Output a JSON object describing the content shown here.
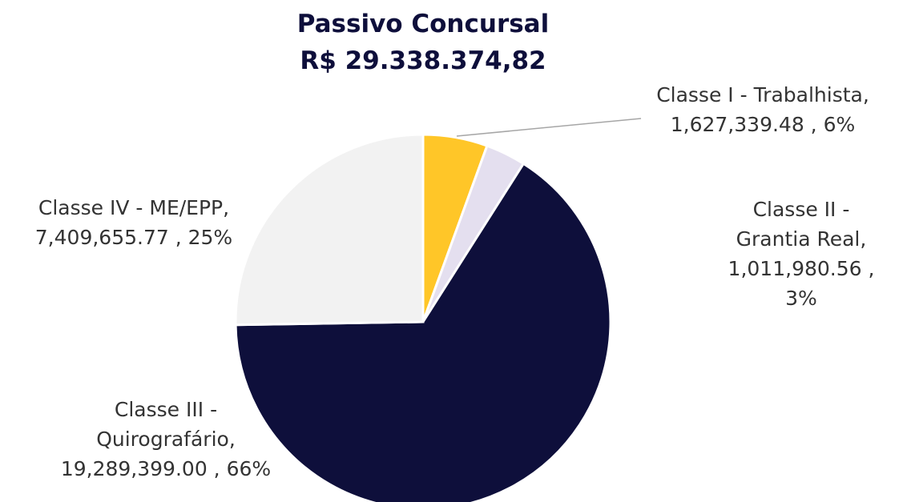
{
  "chart_data": {
    "type": "pie",
    "title": "Passivo Concursal",
    "subtitle": "R$ 29.338.374,82",
    "categories": [
      "Classe I - Trabalhista",
      "Classe II - Grantia Real",
      "Classe III - Quirografário",
      "Classe IV - ME/EPP"
    ],
    "values": [
      1627339.48,
      1011980.56,
      19289399.0,
      7409655.77
    ],
    "value_labels": [
      "1,627,339.48",
      "1,011,980.56",
      "19,289,399.00",
      "7,409,655.77"
    ],
    "percent_labels": [
      "6%",
      "3%",
      "66%",
      "25%"
    ],
    "colors": [
      "#FFC628",
      "#E4DFEF",
      "#0E0F3B",
      "#F2F2F2"
    ]
  }
}
